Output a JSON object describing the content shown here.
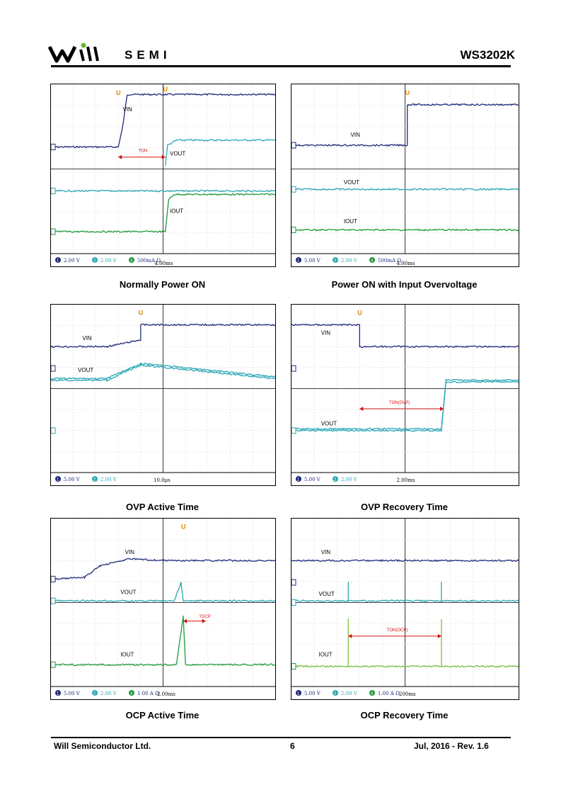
{
  "header": {
    "logo_text": "SEMI",
    "part_number": "WS3202K"
  },
  "footer": {
    "company": "Will Semiconductor Ltd.",
    "page": "6",
    "date_rev": "Jul, 2016 - Rev. 1.6"
  },
  "colors": {
    "vin": "#1f2a7a",
    "vout": "#2aa6b3",
    "iout": "#1e9a3a",
    "iout_light": "#7bc043",
    "marker": "#e08a00",
    "annot": "#d01010"
  },
  "scopes": [
    {
      "caption": "Normally Power ON",
      "labels": [
        "VIN",
        "VOUT",
        "IOUT"
      ],
      "annot": "TON",
      "timebase": "4.00ms",
      "channels": [
        {
          "num": "1",
          "scale": "2.00 V"
        },
        {
          "num": "2",
          "scale": "2.00 V"
        },
        {
          "num": "4",
          "scale": "500mA Ω"
        }
      ]
    },
    {
      "caption": "Power ON with Input Overvoltage",
      "labels": [
        "VIN",
        "VOUT",
        "IOUT"
      ],
      "annot": "",
      "timebase": "4.00ms",
      "channels": [
        {
          "num": "1",
          "scale": "5.00 V"
        },
        {
          "num": "2",
          "scale": "2.00 V"
        },
        {
          "num": "4",
          "scale": "500mA Ω"
        }
      ]
    },
    {
      "caption": "OVP Active Time",
      "labels": [
        "VIN",
        "VOUT"
      ],
      "annot": "",
      "timebase": "10.0μs",
      "channels": [
        {
          "num": "1",
          "scale": "5.00 V"
        },
        {
          "num": "2",
          "scale": "2.00 V"
        }
      ]
    },
    {
      "caption": "OVP Recovery Time",
      "labels": [
        "VIN",
        "VOUT"
      ],
      "annot": "TON(OVP)",
      "timebase": "2.00ms",
      "channels": [
        {
          "num": "1",
          "scale": "5.00 V"
        },
        {
          "num": "2",
          "scale": "2.00 V"
        }
      ]
    },
    {
      "caption": "OCP Active Time",
      "labels": [
        "VIN",
        "VOUT",
        "IOUT"
      ],
      "annot": "TOCP",
      "timebase": "2.00ms",
      "channels": [
        {
          "num": "1",
          "scale": "5.00 V"
        },
        {
          "num": "2",
          "scale": "2.00 V"
        },
        {
          "num": "4",
          "scale": "1.00 A Ω"
        }
      ]
    },
    {
      "caption": "OCP Recovery Time",
      "labels": [
        "VIN",
        "VOUT",
        "IOUT"
      ],
      "annot": "TON(OCP)",
      "timebase": "200ms",
      "channels": [
        {
          "num": "1",
          "scale": "5.00 V"
        },
        {
          "num": "2",
          "scale": "2.00 V"
        },
        {
          "num": "4",
          "scale": "1.00 A Ω"
        }
      ]
    }
  ]
}
